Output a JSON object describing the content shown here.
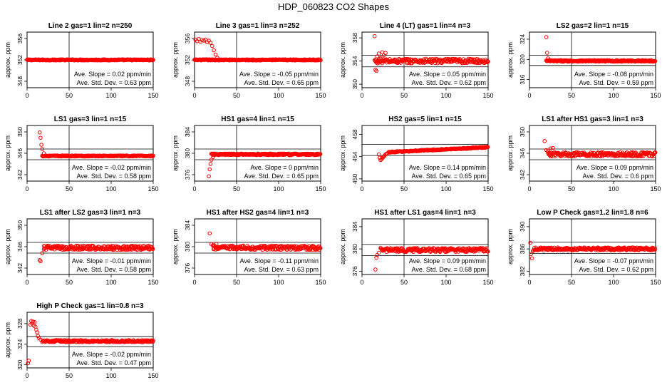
{
  "figure_title": "HDP_060823  CO2 Shapes",
  "colors": {
    "points": "#ff0000",
    "axes": "#000000",
    "background": "#ffffff"
  },
  "chart_data": [
    {
      "type": "scatter",
      "title": "Line 2 gas=1 lin=2 n=250",
      "ylabel": "approx. ppm",
      "xlim": [
        0,
        150
      ],
      "ylim": [
        346.8,
        357.2
      ],
      "xticks": [
        0,
        50,
        100,
        150
      ],
      "yticks": [
        348,
        352,
        356
      ],
      "hlines": [
        351.7,
        352.3
      ],
      "vline": 50,
      "series": [
        {
          "start": 0,
          "end": 150,
          "level": 352.0,
          "noise": 0.1,
          "early": []
        }
      ],
      "annotations": [
        "Ave. Slope = 0.02  ppm/min",
        "Ave. Std. Dev. = 0.63  ppm"
      ]
    },
    {
      "type": "scatter",
      "title": "Line 3 gas=1 lin=3 n=252",
      "ylabel": "approx. ppm",
      "xlim": [
        0,
        150
      ],
      "ylim": [
        346.8,
        357.2
      ],
      "xticks": [
        0,
        50,
        100,
        150
      ],
      "yticks": [
        348,
        352,
        356
      ],
      "hlines": [
        351.7,
        352.3
      ],
      "vline": 50,
      "series": [
        {
          "start": 0,
          "end": 150,
          "level": 352.0,
          "noise": 0.1,
          "early": [
            [
              1,
              355.8
            ],
            [
              3,
              355.5
            ],
            [
              5,
              355.9
            ],
            [
              7,
              355.4
            ],
            [
              9,
              355.7
            ],
            [
              11,
              355.6
            ],
            [
              13,
              355.8
            ],
            [
              15,
              355.3
            ],
            [
              17,
              355.6
            ],
            [
              19,
              355.2
            ],
            [
              21,
              354.6
            ],
            [
              23,
              353.8
            ],
            [
              25,
              353.0
            ],
            [
              27,
              352.4
            ]
          ]
        }
      ],
      "annotations": [
        "Ave. Slope = -0.05  ppm/min",
        "Ave. Std. Dev. = 0.65  ppm"
      ]
    },
    {
      "type": "scatter",
      "title": "Line 4 (LT) gas=1 lin=4 n=3",
      "ylabel": "approx. ppm",
      "xlim": [
        0,
        150
      ],
      "ylim": [
        349.4,
        359.0
      ],
      "xticks": [
        0,
        50,
        100,
        150
      ],
      "yticks": [
        350,
        354,
        358
      ],
      "hlines": [
        353.0,
        355.0
      ],
      "vline": 50,
      "series": [
        {
          "start": 15,
          "end": 150,
          "level": 354.0,
          "noise": 0.4,
          "early": [
            [
              15,
              358.3
            ],
            [
              16,
              352.5
            ],
            [
              17,
              352.3
            ],
            [
              18,
              354.8
            ],
            [
              20,
              355.3
            ],
            [
              22,
              354.5
            ],
            [
              24,
              355.5
            ],
            [
              26,
              355.0
            ],
            [
              28,
              355.4
            ]
          ]
        }
      ],
      "annotations": [
        "Ave. Slope = 0.05  ppm/min",
        "Ave. Std. Dev. = 0.62  ppm"
      ]
    },
    {
      "type": "scatter",
      "title": "LS2 gas=2 lin=1 n=15",
      "ylabel": "approx. ppm",
      "xlim": [
        0,
        150
      ],
      "ylim": [
        314.4,
        325.4
      ],
      "xticks": [
        0,
        50,
        100,
        150
      ],
      "yticks": [
        316,
        320,
        324
      ],
      "hlines": [
        318.8,
        320.8
      ],
      "vline": 50,
      "series": [
        {
          "start": 20,
          "end": 150,
          "level": 319.7,
          "noise": 0.15,
          "early": [
            [
              20,
              324.4
            ],
            [
              21,
              321.3
            ],
            [
              22,
              320.2
            ],
            [
              24,
              319.9
            ]
          ]
        }
      ],
      "annotations": [
        "Ave. Slope = -0.08  ppm/min",
        "Ave. Std. Dev. = 0.59  ppm"
      ]
    },
    {
      "type": "scatter",
      "title": "LS1 gas=3 lin=1 n=15",
      "ylabel": "approx. ppm",
      "xlim": [
        0,
        150
      ],
      "ylim": [
        340.8,
        351.2
      ],
      "xticks": [
        0,
        50,
        100,
        150
      ],
      "yticks": [
        342,
        346,
        350
      ],
      "hlines": [
        344.8,
        346.8
      ],
      "vline": 50,
      "series": [
        {
          "start": 18,
          "end": 150,
          "level": 345.5,
          "noise": 0.1,
          "early": [
            [
              15,
              349.9
            ],
            [
              16,
              348.9
            ],
            [
              17,
              347.6
            ],
            [
              18,
              346.8
            ],
            [
              20,
              346.0
            ],
            [
              22,
              345.6
            ]
          ]
        }
      ],
      "annotations": [
        "Ave. Slope = -0.02  ppm/min",
        "Ave. Std. Dev. = 0.58  ppm"
      ]
    },
    {
      "type": "scatter",
      "title": "HS1 gas=4 lin=1 n=15",
      "ylabel": "approx. ppm",
      "xlim": [
        0,
        150
      ],
      "ylim": [
        374.8,
        385.2
      ],
      "xticks": [
        0,
        50,
        100,
        150
      ],
      "yticks": [
        376,
        380,
        384
      ],
      "hlines": [
        378.8,
        380.8
      ],
      "vline": 50,
      "series": [
        {
          "start": 20,
          "end": 150,
          "level": 379.8,
          "noise": 0.15,
          "early": [
            [
              17,
              375.7
            ],
            [
              18,
              377.0
            ],
            [
              19,
              378.0
            ],
            [
              20,
              378.8
            ],
            [
              22,
              379.3
            ]
          ]
        }
      ],
      "annotations": [
        "Ave. Slope = 0  ppm/min",
        "Ave. Std. Dev. = 0.65  ppm"
      ]
    },
    {
      "type": "scatter",
      "title": "HS2 gas=5 lin=1 n=15",
      "ylabel": "approx. ppm",
      "xlim": [
        0,
        150
      ],
      "ylim": [
        449.6,
        459.6
      ],
      "xticks": [
        0,
        50,
        100,
        150
      ],
      "yticks": [
        450,
        454,
        458
      ],
      "hlines": [
        454.2,
        456.2
      ],
      "vline": 50,
      "series": [
        {
          "start": 32,
          "end": 150,
          "level": 454.8,
          "noise": 0.1,
          "drift": 0.9,
          "early": [
            [
              20,
              454.4
            ],
            [
              21,
              453.8
            ],
            [
              22,
              453.4
            ],
            [
              23,
              453.5
            ],
            [
              24,
              453.7
            ],
            [
              25,
              453.9
            ],
            [
              26,
              454.0
            ],
            [
              27,
              454.2
            ],
            [
              28,
              454.4
            ],
            [
              29,
              454.5
            ],
            [
              30,
              454.6
            ]
          ]
        }
      ],
      "annotations": [
        "Ave. Slope = 0.14  ppm/min",
        "Ave. Std. Dev. = 0.65  ppm"
      ]
    },
    {
      "type": "scatter",
      "title": "LS1 after HS1 gas=3 lin=1 n=3",
      "ylabel": "approx. ppm",
      "xlim": [
        0,
        150
      ],
      "ylim": [
        340.8,
        351.2
      ],
      "xticks": [
        0,
        50,
        100,
        150
      ],
      "yticks": [
        342,
        346,
        350
      ],
      "hlines": [
        344.8,
        346.8
      ],
      "vline": 50,
      "series": [
        {
          "start": 22,
          "end": 150,
          "level": 345.8,
          "noise": 0.4,
          "early": [
            [
              18,
              348.3
            ],
            [
              20,
              346.6
            ],
            [
              22,
              346.5
            ],
            [
              25,
              346.9
            ],
            [
              28,
              347.0
            ]
          ]
        }
      ],
      "annotations": [
        "Ave. Slope = 0.09  ppm/min",
        "Ave. Std. Dev. = 0.6  ppm"
      ]
    },
    {
      "type": "scatter",
      "title": "LS1 after LS2 gas=3 lin=1 n=3",
      "ylabel": "approx. ppm",
      "xlim": [
        0,
        150
      ],
      "ylim": [
        340.8,
        351.2
      ],
      "xticks": [
        0,
        50,
        100,
        150
      ],
      "yticks": [
        342,
        346,
        350
      ],
      "hlines": [
        344.8,
        346.8
      ],
      "vline": 50,
      "series": [
        {
          "start": 20,
          "end": 150,
          "level": 345.8,
          "noise": 0.4,
          "early": [
            [
              15,
              343.5
            ],
            [
              16,
              343.3
            ],
            [
              18,
              344.8
            ],
            [
              20,
              345.5
            ]
          ]
        }
      ],
      "annotations": [
        "Ave. Slope = -0.01  ppm/min",
        "Ave. Std. Dev. = 0.58  ppm"
      ]
    },
    {
      "type": "scatter",
      "title": "HS1 after HS2 gas=4 lin=1 n=3",
      "ylabel": "approx. ppm",
      "xlim": [
        0,
        150
      ],
      "ylim": [
        374.8,
        385.2
      ],
      "xticks": [
        0,
        50,
        100,
        150
      ],
      "yticks": [
        376,
        380,
        384
      ],
      "hlines": [
        378.8,
        380.8
      ],
      "vline": 50,
      "series": [
        {
          "start": 22,
          "end": 150,
          "level": 379.8,
          "noise": 0.4,
          "early": [
            [
              18,
              382.5
            ],
            [
              20,
              380.5
            ],
            [
              22,
              380.3
            ],
            [
              26,
              380.5
            ]
          ]
        }
      ],
      "annotations": [
        "Ave. Slope = -0.11  ppm/min",
        "Ave. Std. Dev. = 0.63  ppm"
      ]
    },
    {
      "type": "scatter",
      "title": "HS1 after LS1 gas=4 lin=1 n=3",
      "ylabel": "approx. ppm",
      "xlim": [
        0,
        150
      ],
      "ylim": [
        375.4,
        385.4
      ],
      "xticks": [
        0,
        50,
        100,
        150
      ],
      "yticks": [
        376,
        380,
        384
      ],
      "hlines": [
        378.8,
        380.8
      ],
      "vline": 50,
      "series": [
        {
          "start": 22,
          "end": 150,
          "level": 379.8,
          "noise": 0.35,
          "early": [
            [
              16,
              376.3
            ],
            [
              17,
              378.4
            ],
            [
              18,
              378.9
            ],
            [
              20,
              379.3
            ]
          ]
        }
      ],
      "annotations": [
        "Ave. Slope = 0.09  ppm/min",
        "Ave. Std. Dev. = 0.68  ppm"
      ]
    },
    {
      "type": "scatter",
      "title": "Low P Check gas=1.2 lin=1.8 n=6",
      "ylabel": "approx. ppm",
      "xlim": [
        0,
        150
      ],
      "ylim": [
        381.4,
        391.4
      ],
      "xticks": [
        0,
        50,
        100,
        150
      ],
      "yticks": [
        382,
        386,
        390
      ],
      "hlines": [
        385.2,
        387.2
      ],
      "vline": 50,
      "series": [
        {
          "start": 5,
          "end": 150,
          "level": 386.0,
          "noise": 0.25,
          "early": [
            [
              1,
              387.1
            ],
            [
              2,
              385.1
            ],
            [
              3,
              384.3
            ],
            [
              4,
              385.6
            ]
          ]
        }
      ],
      "annotations": [
        "Ave. Slope = -0.07  ppm/min",
        "Ave. Std. Dev. = 0.62  ppm"
      ]
    },
    {
      "type": "scatter",
      "title": "High P Check gas=1 lin=0.8 n=3",
      "ylabel": "approx. ppm",
      "xlim": [
        0,
        150
      ],
      "ylim": [
        319.4,
        330.2
      ],
      "xticks": [
        0,
        50,
        100,
        150
      ],
      "yticks": [
        320,
        324,
        328
      ],
      "hlines": [
        323.5,
        325.5
      ],
      "vline": 50,
      "series": [
        {
          "start": 18,
          "end": 150,
          "level": 324.6,
          "noise": 0.2,
          "early": [
            [
              1,
              320.3
            ],
            [
              2,
              320.8
            ],
            [
              4,
              327.8
            ],
            [
              5,
              328.5
            ],
            [
              6,
              328.0
            ],
            [
              7,
              328.4
            ],
            [
              8,
              327.6
            ],
            [
              9,
              328.3
            ],
            [
              10,
              327.4
            ],
            [
              11,
              326.8
            ],
            [
              12,
              326.3
            ],
            [
              13,
              325.6
            ],
            [
              14,
              325.2
            ],
            [
              16,
              324.9
            ]
          ]
        }
      ],
      "annotations": [
        "Ave. Slope = -0.02  ppm/min",
        "Ave. Std. Dev. = 0.47  ppm"
      ]
    }
  ]
}
